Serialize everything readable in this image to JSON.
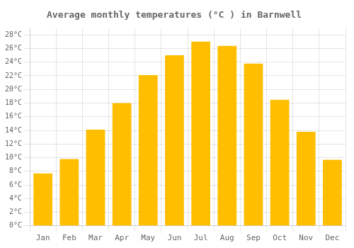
{
  "chart_data": {
    "type": "bar",
    "title": "Average monthly temperatures (°C ) in Barnwell",
    "categories": [
      "Jan",
      "Feb",
      "Mar",
      "Apr",
      "May",
      "Jun",
      "Jul",
      "Aug",
      "Sep",
      "Oct",
      "Nov",
      "Dec"
    ],
    "values": [
      7.7,
      9.8,
      14.1,
      18.0,
      22.1,
      25.0,
      27.0,
      26.4,
      23.8,
      18.5,
      13.8,
      9.7
    ],
    "color": "#FFBE00",
    "ylim": [
      0,
      29
    ],
    "yticks": [
      {
        "value": 0,
        "label": "0°C"
      },
      {
        "value": 2,
        "label": "2°C"
      },
      {
        "value": 4,
        "label": "4°C"
      },
      {
        "value": 6,
        "label": "6°C"
      },
      {
        "value": 8,
        "label": "8°C"
      },
      {
        "value": 10,
        "label": "10°C"
      },
      {
        "value": 12,
        "label": "12°C"
      },
      {
        "value": 14,
        "label": "14°C"
      },
      {
        "value": 16,
        "label": "16°C"
      },
      {
        "value": 18,
        "label": "18°C"
      },
      {
        "value": 20,
        "label": "20°C"
      },
      {
        "value": 22,
        "label": "22°C"
      },
      {
        "value": 24,
        "label": "24°C"
      },
      {
        "value": 26,
        "label": "26°C"
      },
      {
        "value": 28,
        "label": "28°C"
      }
    ],
    "grid": true
  }
}
